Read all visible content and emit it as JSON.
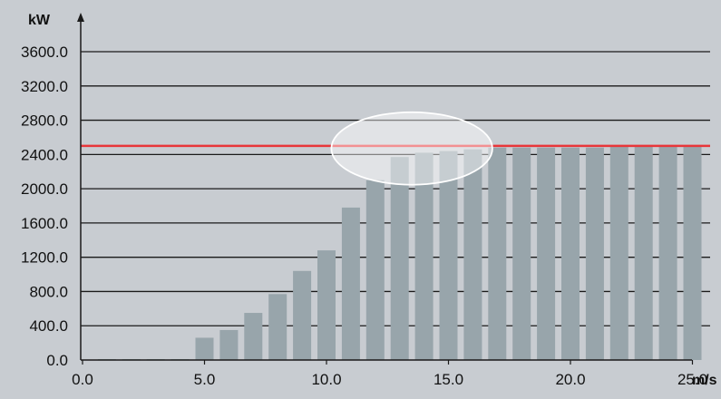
{
  "chart_data": {
    "type": "bar",
    "y_unit": "kW",
    "x_unit": "m/s",
    "x": [
      1,
      2,
      3,
      4,
      5,
      6,
      7,
      8,
      9,
      10,
      11,
      12,
      13,
      14,
      15,
      16,
      17,
      18,
      19,
      20,
      21,
      22,
      23,
      24,
      25
    ],
    "values": [
      10,
      10,
      10,
      10,
      260,
      350,
      550,
      770,
      1040,
      1280,
      1780,
      2100,
      2370,
      2420,
      2440,
      2460,
      2480,
      2480,
      2480,
      2480,
      2480,
      2500,
      2500,
      2500,
      2500
    ],
    "xticks": [
      "0.0",
      "5.0",
      "10.0",
      "15.0",
      "20.0",
      "25.0"
    ],
    "xtick_values": [
      0,
      5,
      10,
      15,
      20,
      25
    ],
    "yticks": [
      "0.0",
      "400.0",
      "800.0",
      "1200.0",
      "1600.0",
      "2000.0",
      "2400.0",
      "2800.0",
      "3200.0",
      "3600.0"
    ],
    "ytick_values": [
      0,
      400,
      800,
      1200,
      1600,
      2000,
      2400,
      2800,
      3200,
      3600
    ],
    "xlim": [
      0,
      25.5
    ],
    "ylim": [
      0,
      3600
    ],
    "reference_line": {
      "value": 2500,
      "color": "#e8363a"
    },
    "highlight_ellipse": {
      "x_range": [
        10.2,
        16.8
      ],
      "y_center": 2470
    },
    "grid": "horizontal",
    "bar_color": "#98a5ab",
    "background": "#c8ccd1"
  }
}
